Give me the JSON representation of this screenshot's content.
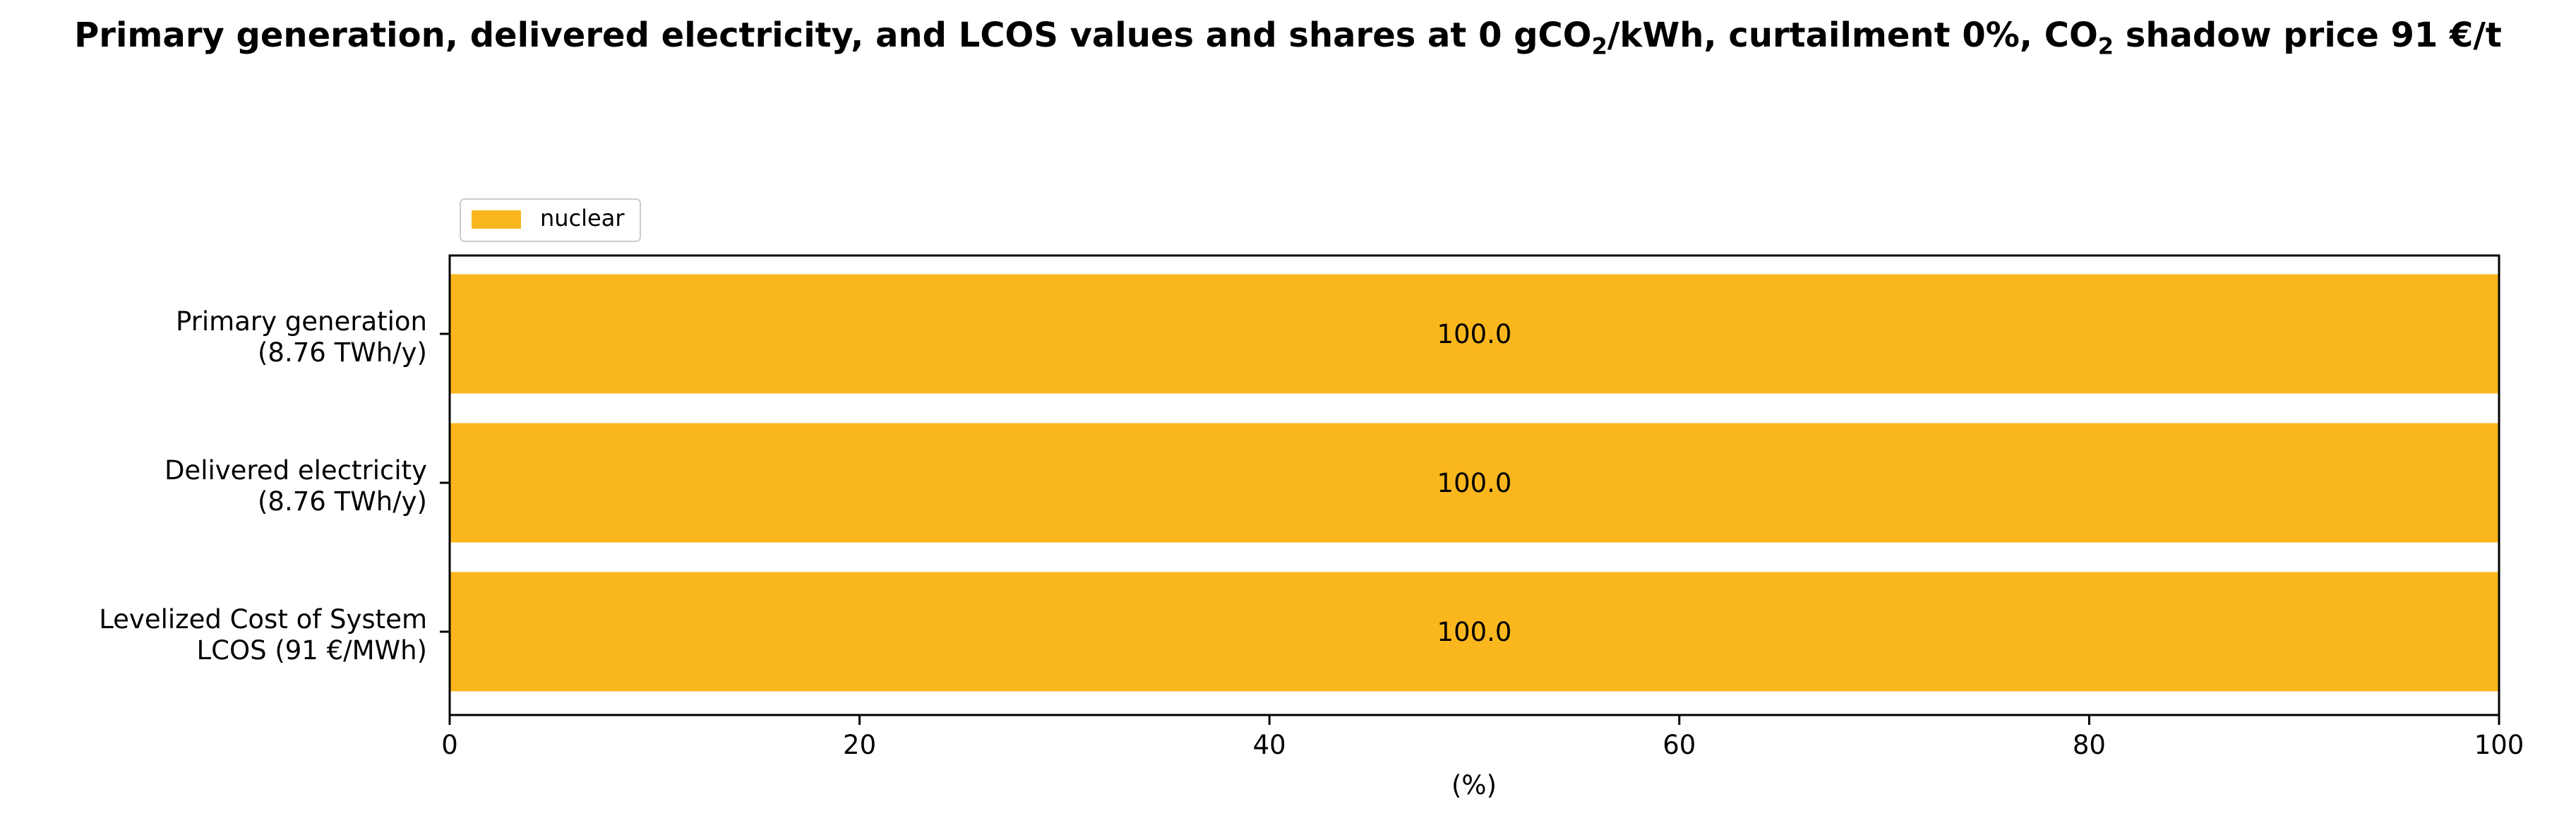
{
  "chart_data": {
    "type": "bar",
    "orientation": "horizontal",
    "stacked": true,
    "title": {
      "part1": "Primary generation, delivered electricity, and LCOS values and shares at 0 gCO",
      "sub1": "2",
      "part2": "/kWh, curtailment 0%, CO",
      "sub2": "2",
      "part3": " shadow price 91 €/t"
    },
    "categories": [
      [
        "Primary generation",
        "(8.76 TWh/y)"
      ],
      [
        "Delivered electricity",
        "(8.76 TWh/y)"
      ],
      [
        "Levelized Cost of System",
        "LCOS  (91 €/MWh)"
      ]
    ],
    "series": [
      {
        "name": "nuclear",
        "color": "#FAB71D",
        "values": [
          100.0,
          100.0,
          100.0
        ]
      }
    ],
    "data_labels": [
      "100.0",
      "100.0",
      "100.0"
    ],
    "xlabel": "(%)",
    "xlim": [
      0,
      100
    ],
    "xticks": [
      0,
      20,
      40,
      60,
      80,
      100
    ],
    "grid": false,
    "legend_position": "top-left, above plot"
  }
}
